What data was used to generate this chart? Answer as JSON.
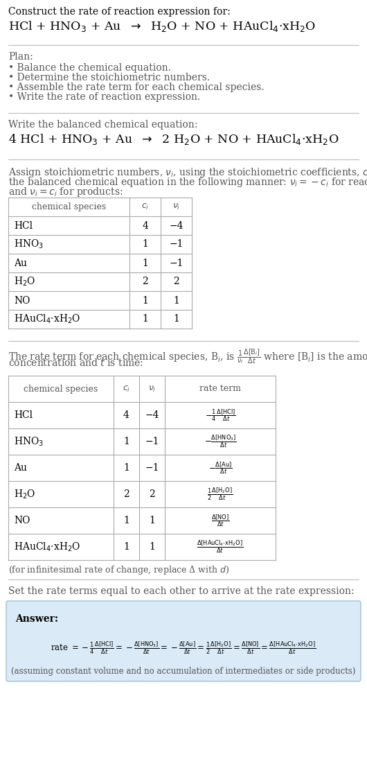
{
  "bg_color": "#ffffff",
  "text_color": "#000000",
  "gray_text": "#555555",
  "section1_title": "Construct the rate of reaction expression for:",
  "plan_title": "Plan:",
  "plan_items": [
    "• Balance the chemical equation.",
    "• Determine the stoichiometric numbers.",
    "• Assemble the rate term for each chemical species.",
    "• Write the rate of reaction expression."
  ],
  "balanced_title": "Write the balanced chemical equation:",
  "stoich_intro_lines": [
    "Assign stoichiometric numbers, $\\nu_i$, using the stoichiometric coefficients, $c_i$, from",
    "the balanced chemical equation in the following manner: $\\nu_i = -c_i$ for reactants",
    "and $\\nu_i = c_i$ for products:"
  ],
  "table1_headers": [
    "chemical species",
    "$c_i$",
    "$\\nu_i$"
  ],
  "table1_data": [
    [
      "HCl",
      "4",
      "−4"
    ],
    [
      "HNO$_3$",
      "1",
      "−1"
    ],
    [
      "Au",
      "1",
      "−1"
    ],
    [
      "H$_2$O",
      "2",
      "2"
    ],
    [
      "NO",
      "1",
      "1"
    ],
    [
      "HAuCl$_4$·xH$_2$O",
      "1",
      "1"
    ]
  ],
  "rate_intro_lines": [
    "The rate term for each chemical species, B$_i$, is $\\frac{1}{\\nu_i}\\frac{\\Delta[\\mathrm{B}_i]}{\\Delta t}$ where [B$_i$] is the amount",
    "concentration and $t$ is time:"
  ],
  "table2_headers": [
    "chemical species",
    "$c_i$",
    "$\\nu_i$",
    "rate term"
  ],
  "table2_data": [
    [
      "HCl",
      "4",
      "−4",
      "$-\\frac{1}{4}\\frac{\\Delta[\\mathrm{HCl}]}{\\Delta t}$"
    ],
    [
      "HNO$_3$",
      "1",
      "−1",
      "$-\\frac{\\Delta[\\mathrm{HNO_3}]}{\\Delta t}$"
    ],
    [
      "Au",
      "1",
      "−1",
      "$-\\frac{\\Delta[\\mathrm{Au}]}{\\Delta t}$"
    ],
    [
      "H$_2$O",
      "2",
      "2",
      "$\\frac{1}{2}\\frac{\\Delta[\\mathrm{H_2O}]}{\\Delta t}$"
    ],
    [
      "NO",
      "1",
      "1",
      "$\\frac{\\Delta[\\mathrm{NO}]}{\\Delta t}$"
    ],
    [
      "HAuCl$_4$·xH$_2$O",
      "1",
      "1",
      "$\\frac{\\Delta[\\mathrm{HAuCl_4{\\cdot}xH_2O}]}{\\Delta t}$"
    ]
  ],
  "infinitesimal_note": "(for infinitesimal rate of change, replace Δ with $d$)",
  "set_equal_text": "Set the rate terms equal to each other to arrive at the rate expression:",
  "answer_box_color": "#daeaf6",
  "answer_box_border": "#a8cce0",
  "answer_label": "Answer:",
  "answer_rate_parts": [
    "rate $= -\\frac{1}{4}\\frac{\\Delta[\\mathrm{HCl}]}{\\Delta t} = -\\frac{\\Delta[\\mathrm{HNO_3}]}{\\Delta t} = -\\frac{\\Delta[\\mathrm{Au}]}{\\Delta t} = \\frac{1}{2}\\frac{\\Delta[\\mathrm{H_2O}]}{\\Delta t} = \\frac{\\Delta[\\mathrm{NO}]}{\\Delta t} = \\frac{\\Delta[\\mathrm{HAuCl_4{\\cdot}xH_2O}]}{\\Delta t}$"
  ],
  "answer_note": "(assuming constant volume and no accumulation of intermediates or side products)"
}
